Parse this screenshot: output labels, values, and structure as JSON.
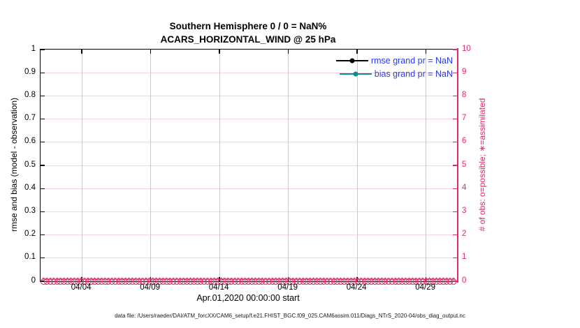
{
  "titles": {
    "line1": "Southern Hemisphere 0 / 0 = NaN%",
    "line2": "ACARS_HORIZONTAL_WIND @ 25 hPa"
  },
  "colors": {
    "pink": "#e02a64",
    "grid_pink": "#f6d3de",
    "grid_gray": "#c9c9c9",
    "legend_text_blue": "#2a3ce8",
    "rmse_black": "#000000",
    "bias_teal": "#0d8c8c"
  },
  "left_axis": {
    "label": "rmse and bias (model - observation)",
    "tick_labels": [
      "0",
      "0.1",
      "0.2",
      "0.3",
      "0.4",
      "0.5",
      "0.6",
      "0.7",
      "0.8",
      "0.9",
      "1"
    ],
    "min": 0,
    "max": 1
  },
  "right_axis": {
    "label": "# of obs: o=possible; ∗=assimilated",
    "tick_labels": [
      "0",
      "1",
      "2",
      "3",
      "4",
      "5",
      "6",
      "7",
      "8",
      "9",
      "10"
    ],
    "min": 0,
    "max": 10
  },
  "x_axis": {
    "label": "Apr.01,2020 00:00:00 start",
    "ticks": [
      {
        "label": "04/04",
        "day": 3
      },
      {
        "label": "04/09",
        "day": 8
      },
      {
        "label": "04/14",
        "day": 13
      },
      {
        "label": "04/19",
        "day": 18
      },
      {
        "label": "04/24",
        "day": 23
      },
      {
        "label": "04/29",
        "day": 28
      }
    ],
    "span_days": 30.25
  },
  "legend": {
    "items": [
      {
        "label": "rmse grand pr = NaN",
        "color_key": "rmse_black"
      },
      {
        "label": "bias grand pr = NaN",
        "color_key": "bias_teal"
      }
    ]
  },
  "obs_markers": {
    "count": 121,
    "value_on_right_axis": 0,
    "glyph": "*"
  },
  "footer": "data file: /Users/raeder/DAI/ATM_forcXX/CAM6_setup/f.e21.FHIST_BGC.f09_025.CAM6assim.011/Diags_NTrS_2020-04/obs_diag_output.nc",
  "chart_data": {
    "type": "line",
    "title": "Southern Hemisphere 0 / 0 = NaN% — ACARS_HORIZONTAL_WIND @ 25 hPa",
    "xlabel": "Apr.01,2020 00:00:00 start",
    "ylabel_left": "rmse and bias (model - observation)",
    "ylabel_right": "# of obs: o=possible; *=assimilated",
    "x_tick_labels": [
      "04/04",
      "04/09",
      "04/14",
      "04/19",
      "04/24",
      "04/29"
    ],
    "x_range": [
      "2020-04-01 00:00",
      "2020-05-01 06:00"
    ],
    "ylim_left": [
      0,
      1
    ],
    "ylim_right": [
      0,
      10
    ],
    "grid": true,
    "legend_position": "upper right inside, no box",
    "series": [
      {
        "name": "rmse grand pr",
        "axis": "left",
        "value": "NaN",
        "points_plotted": 0
      },
      {
        "name": "bias grand pr",
        "axis": "left",
        "value": "NaN",
        "points_plotted": 0
      },
      {
        "name": "# of obs possible (o)",
        "axis": "right",
        "constant_value": 0,
        "points": 121,
        "cadence": "6-hourly"
      },
      {
        "name": "# of obs assimilated (*)",
        "axis": "right",
        "constant_value": 0,
        "points": 121,
        "cadence": "6-hourly"
      }
    ]
  }
}
